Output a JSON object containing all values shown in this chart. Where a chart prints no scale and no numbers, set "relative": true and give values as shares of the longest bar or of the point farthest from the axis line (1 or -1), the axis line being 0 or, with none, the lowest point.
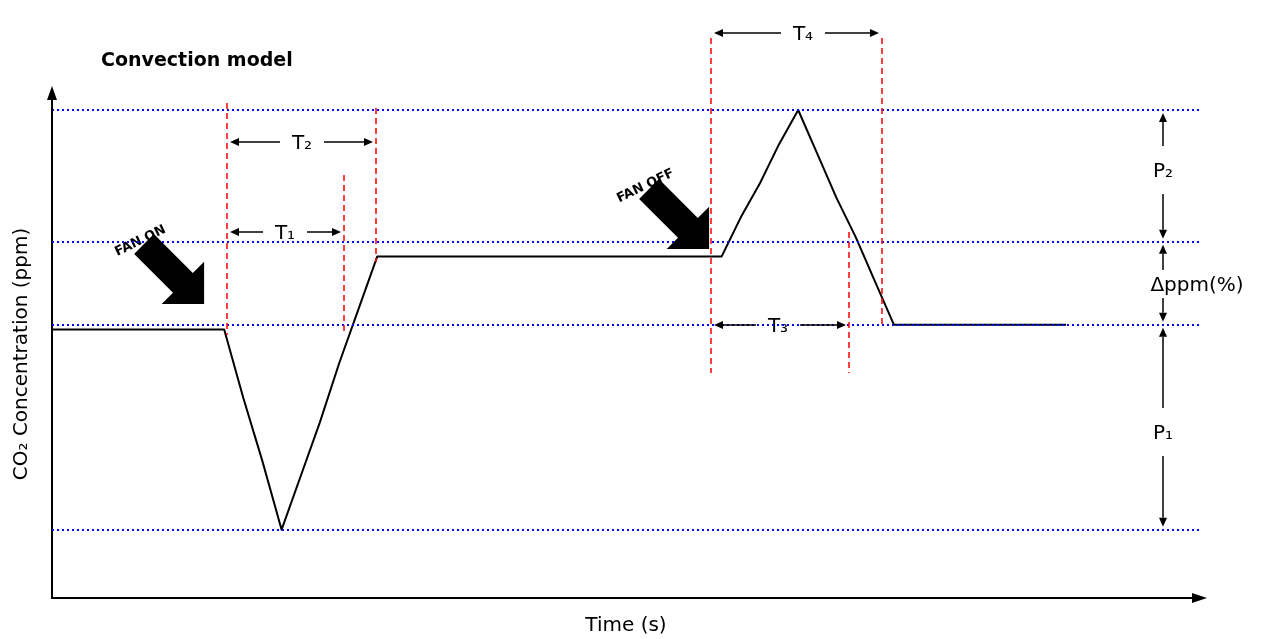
{
  "chart_data": {
    "type": "line",
    "title": "Convection model",
    "xlabel": "Time (s)",
    "ylabel": "CO₂ Concentration (ppm)",
    "relative": true,
    "grid": false,
    "marker": "none",
    "line_style": "solid",
    "categories": [
      null,
      null,
      null,
      null,
      null,
      null,
      null,
      null,
      null,
      null,
      null,
      null,
      null,
      null,
      null,
      null,
      null,
      null,
      null,
      null,
      null,
      null,
      null,
      null,
      null,
      null,
      null,
      null,
      null,
      null,
      null,
      null,
      null,
      null,
      null,
      null,
      null,
      null,
      null,
      null,
      null,
      null,
      null,
      null,
      null,
      null,
      null,
      null,
      null,
      null,
      null,
      null,
      null,
      null,
      null,
      null,
      null,
      null,
      null,
      null,
      null
    ],
    "series": [
      {
        "color": "#000000",
        "values": [
          0.55,
          0.55,
          0.55,
          0.55,
          0.55,
          0.55,
          0.55,
          0.55,
          0.55,
          0.55,
          0.41,
          0.28,
          0.14,
          0.25,
          0.36,
          0.48,
          0.59,
          0.7,
          0.7,
          0.7,
          0.7,
          0.7,
          0.7,
          0.7,
          0.7,
          0.7,
          0.7,
          0.7,
          0.7,
          0.7,
          0.7,
          0.7,
          0.7,
          0.7,
          0.7,
          0.7,
          0.78,
          0.85,
          0.93,
          1,
          0.91,
          0.82,
          0.74,
          0.65,
          0.56,
          0.56,
          0.56,
          0.56,
          0.56,
          0.56,
          0.56,
          0.56,
          0.56,
          0.56,
          null,
          null,
          null,
          null,
          null,
          null,
          null
        ]
      }
    ],
    "ref_lines": [
      {
        "axis": "y",
        "value": 1,
        "color": "#0000ff",
        "line_style": "dotted"
      },
      {
        "axis": "y",
        "value": 0.73,
        "color": "#0000ff",
        "line_style": "dotted"
      },
      {
        "axis": "y",
        "value": 0.56,
        "color": "#0000ff",
        "line_style": "dotted"
      },
      {
        "axis": "y",
        "value": 0.14,
        "color": "#0000ff",
        "line_style": "dotted"
      }
    ],
    "annotations": [
      "T₂",
      "T₁",
      "T₄",
      "T₃",
      "P₂",
      "Δppm(%)",
      "P₁",
      "FAN ON",
      "FAN OFF"
    ]
  }
}
